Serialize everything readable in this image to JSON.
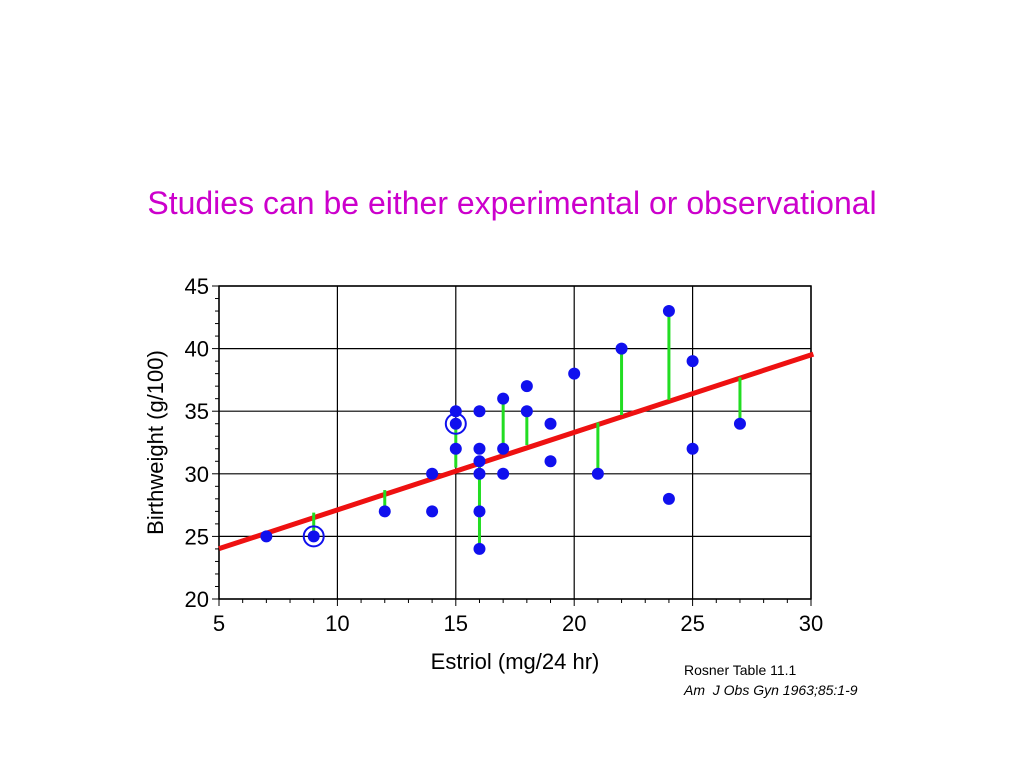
{
  "slide": {
    "title": "Studies can be either experimental or observational"
  },
  "citation": {
    "line1": "Rosner Table 11.1",
    "line2": "Am  J Obs Gyn 1963;85:1-9"
  },
  "colors": {
    "title": "#cc00cc",
    "points": "#1010ee",
    "regression": "#ee1111",
    "residuals": "#22dd22",
    "grid": "#000000"
  },
  "chart_data": {
    "type": "scatter",
    "xlabel": "Estriol (mg/24 hr)",
    "ylabel": "Birthweight (g/100)",
    "xlim": [
      5,
      30
    ],
    "ylim": [
      20,
      45
    ],
    "xticks": [
      5,
      10,
      15,
      20,
      25,
      30
    ],
    "yticks": [
      20,
      25,
      30,
      35,
      40,
      45
    ],
    "grid": true,
    "regression_line": {
      "intercept": 21.5,
      "slope": 0.6
    },
    "points": [
      {
        "x": 7,
        "y": 25
      },
      {
        "x": 9,
        "y": 25
      },
      {
        "x": 12,
        "y": 27
      },
      {
        "x": 14,
        "y": 27
      },
      {
        "x": 14,
        "y": 30
      },
      {
        "x": 15,
        "y": 32
      },
      {
        "x": 15,
        "y": 34
      },
      {
        "x": 15,
        "y": 35
      },
      {
        "x": 16,
        "y": 24
      },
      {
        "x": 16,
        "y": 27
      },
      {
        "x": 16,
        "y": 30
      },
      {
        "x": 16,
        "y": 31
      },
      {
        "x": 16,
        "y": 32
      },
      {
        "x": 16,
        "y": 35
      },
      {
        "x": 17,
        "y": 30
      },
      {
        "x": 17,
        "y": 32
      },
      {
        "x": 17,
        "y": 36
      },
      {
        "x": 18,
        "y": 35
      },
      {
        "x": 18,
        "y": 37
      },
      {
        "x": 19,
        "y": 31
      },
      {
        "x": 19,
        "y": 34
      },
      {
        "x": 20,
        "y": 38
      },
      {
        "x": 21,
        "y": 30
      },
      {
        "x": 22,
        "y": 40
      },
      {
        "x": 24,
        "y": 28
      },
      {
        "x": 24,
        "y": 43
      },
      {
        "x": 25,
        "y": 32
      },
      {
        "x": 25,
        "y": 39
      },
      {
        "x": 27,
        "y": 34
      }
    ],
    "residuals": [
      {
        "x": 9,
        "y": 25
      },
      {
        "x": 12,
        "y": 27
      },
      {
        "x": 15,
        "y": 34
      },
      {
        "x": 16,
        "y": 24
      },
      {
        "x": 16,
        "y": 31
      },
      {
        "x": 17,
        "y": 36
      },
      {
        "x": 18,
        "y": 35
      },
      {
        "x": 21,
        "y": 30
      },
      {
        "x": 22,
        "y": 40
      },
      {
        "x": 24,
        "y": 43
      },
      {
        "x": 27,
        "y": 34
      }
    ],
    "highlighted_points": [
      {
        "x": 9,
        "y": 25
      },
      {
        "x": 15,
        "y": 34
      }
    ]
  }
}
